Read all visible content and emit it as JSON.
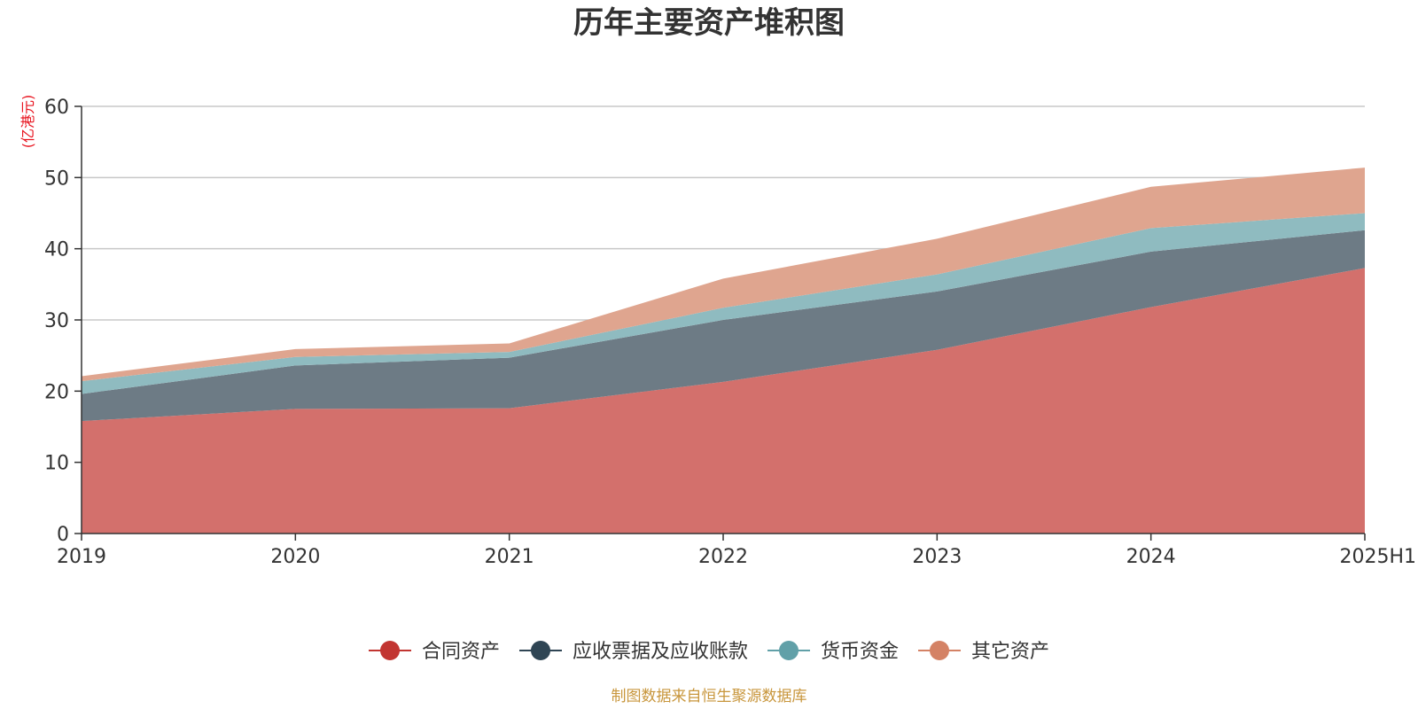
{
  "chart_data": {
    "type": "area",
    "stacked": true,
    "title": "历年主要资产堆积图",
    "unit_label": "(亿港元)",
    "categories": [
      "2019",
      "2020",
      "2021",
      "2022",
      "2023",
      "2024",
      "2025H1"
    ],
    "ylim": [
      0,
      60
    ],
    "yticks": [
      0,
      10,
      20,
      30,
      40,
      50,
      60
    ],
    "grid": true,
    "legend_position": "bottom-center",
    "series": [
      {
        "name": "合同资产",
        "legend_color": "#c23531",
        "fill": "#d3706c",
        "values": [
          15.8,
          17.5,
          17.6,
          21.3,
          25.8,
          31.8,
          37.3
        ]
      },
      {
        "name": "应收票据及应收账款",
        "legend_color": "#2f4554",
        "fill": "#6d7b85",
        "values": [
          3.8,
          6.1,
          7.1,
          8.7,
          8.2,
          7.8,
          5.3
        ]
      },
      {
        "name": "货币资金",
        "legend_color": "#61a0a8",
        "fill": "#8fbbc0",
        "values": [
          1.8,
          1.2,
          0.8,
          1.7,
          2.4,
          3.3,
          2.4
        ]
      },
      {
        "name": "其它资产",
        "legend_color": "#d48265",
        "fill": "#dfa58f",
        "values": [
          0.7,
          1.1,
          1.2,
          4.1,
          5.0,
          5.8,
          6.4
        ]
      }
    ],
    "source": "制图数据来自恒生聚源数据库"
  }
}
